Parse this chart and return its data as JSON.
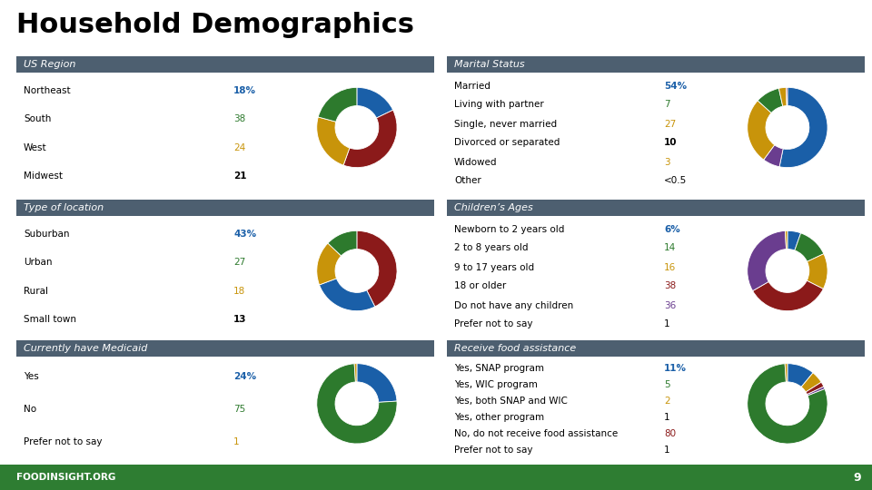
{
  "title": "Household Demographics",
  "title_fontsize": 22,
  "title_fontweight": "bold",
  "background_color": "#ffffff",
  "header_color": "#4d5f70",
  "header_text_color": "#ffffff",
  "header_fontsize": 8,
  "label_fontsize": 7.5,
  "value_fontsize": 7.5,
  "footer_text": "FOODINSIGHT.ORG",
  "footer_bg": "#2e7d32",
  "page_number": "9",
  "sections": [
    {
      "title": "US Region",
      "labels": [
        "Northeast",
        "South",
        "West",
        "Midwest"
      ],
      "values": [
        18,
        38,
        24,
        21
      ],
      "value_strs": [
        "18%",
        "38",
        "24",
        "21"
      ],
      "value_colors": [
        "#1a5fa8",
        "#2d7a2d",
        "#c8940a",
        "#000000"
      ],
      "value_bold": [
        true,
        false,
        false,
        true
      ],
      "donut_colors": [
        "#1a5fa8",
        "#8b1a1a",
        "#c8940a",
        "#2d7a2d"
      ],
      "col": 0,
      "row": 0
    },
    {
      "title": "Type of location",
      "labels": [
        "Suburban",
        "Urban",
        "Rural",
        "Small town"
      ],
      "values": [
        43,
        27,
        18,
        13
      ],
      "value_strs": [
        "43%",
        "27",
        "18",
        "13"
      ],
      "value_colors": [
        "#1a5fa8",
        "#2d7a2d",
        "#c8940a",
        "#000000"
      ],
      "value_bold": [
        true,
        false,
        false,
        true
      ],
      "donut_colors": [
        "#8b1a1a",
        "#1a5fa8",
        "#c8940a",
        "#2d7a2d"
      ],
      "col": 0,
      "row": 1
    },
    {
      "title": "Currently have Medicaid",
      "labels": [
        "Yes",
        "No",
        "Prefer not to say"
      ],
      "values": [
        24,
        75,
        1
      ],
      "value_strs": [
        "24%",
        "75",
        "1"
      ],
      "value_colors": [
        "#1a5fa8",
        "#2d7a2d",
        "#c8940a"
      ],
      "value_bold": [
        true,
        false,
        false
      ],
      "donut_colors": [
        "#1a5fa8",
        "#2d7a2d",
        "#c8940a"
      ],
      "col": 0,
      "row": 2
    },
    {
      "title": "Marital Status",
      "labels": [
        "Married",
        "Living with partner",
        "Single, never married",
        "Divorced or separated",
        "Widowed",
        "Other"
      ],
      "values": [
        54,
        7,
        27,
        10,
        3,
        0.5
      ],
      "value_strs": [
        "54%",
        "7",
        "27",
        "10",
        "3",
        "<0.5"
      ],
      "value_colors": [
        "#1a5fa8",
        "#2d7a2d",
        "#c8940a",
        "#000000",
        "#c8940a",
        "#000000"
      ],
      "value_bold": [
        true,
        false,
        false,
        true,
        false,
        false
      ],
      "donut_colors": [
        "#1a5fa8",
        "#6a3d8f",
        "#c8940a",
        "#2d7a2d",
        "#c8940a",
        "#8b1a1a"
      ],
      "col": 1,
      "row": 0
    },
    {
      "title": "Children’s Ages",
      "labels": [
        "Newborn to 2 years old",
        "2 to 8 years old",
        "9 to 17 years old",
        "18 or older",
        "Do not have any children",
        "Prefer not to say"
      ],
      "values": [
        6,
        14,
        16,
        38,
        36,
        1
      ],
      "value_strs": [
        "6%",
        "14",
        "16",
        "38",
        "36",
        "1"
      ],
      "value_colors": [
        "#1a5fa8",
        "#2d7a2d",
        "#c8940a",
        "#8b1a1a",
        "#6a3d8f",
        "#000000"
      ],
      "value_bold": [
        true,
        false,
        false,
        false,
        false,
        false
      ],
      "donut_colors": [
        "#1a5fa8",
        "#2d7a2d",
        "#c8940a",
        "#8b1a1a",
        "#6a3d8f",
        "#c8940a"
      ],
      "col": 1,
      "row": 1
    },
    {
      "title": "Receive food assistance",
      "labels": [
        "Yes, SNAP program",
        "Yes, WIC program",
        "Yes, both SNAP and WIC",
        "Yes, other program",
        "No, do not receive food assistance",
        "Prefer not to say"
      ],
      "values": [
        11,
        5,
        2,
        1,
        80,
        1
      ],
      "value_strs": [
        "11%",
        "5",
        "2",
        "1",
        "80",
        "1"
      ],
      "value_colors": [
        "#1a5fa8",
        "#2d7a2d",
        "#c8940a",
        "#000000",
        "#8b1a1a",
        "#000000"
      ],
      "value_bold": [
        true,
        false,
        false,
        false,
        false,
        false
      ],
      "donut_colors": [
        "#1a5fa8",
        "#c8940a",
        "#8b1a1a",
        "#6a3d8f",
        "#2d7a2d",
        "#c8940a"
      ],
      "col": 1,
      "row": 2
    }
  ]
}
